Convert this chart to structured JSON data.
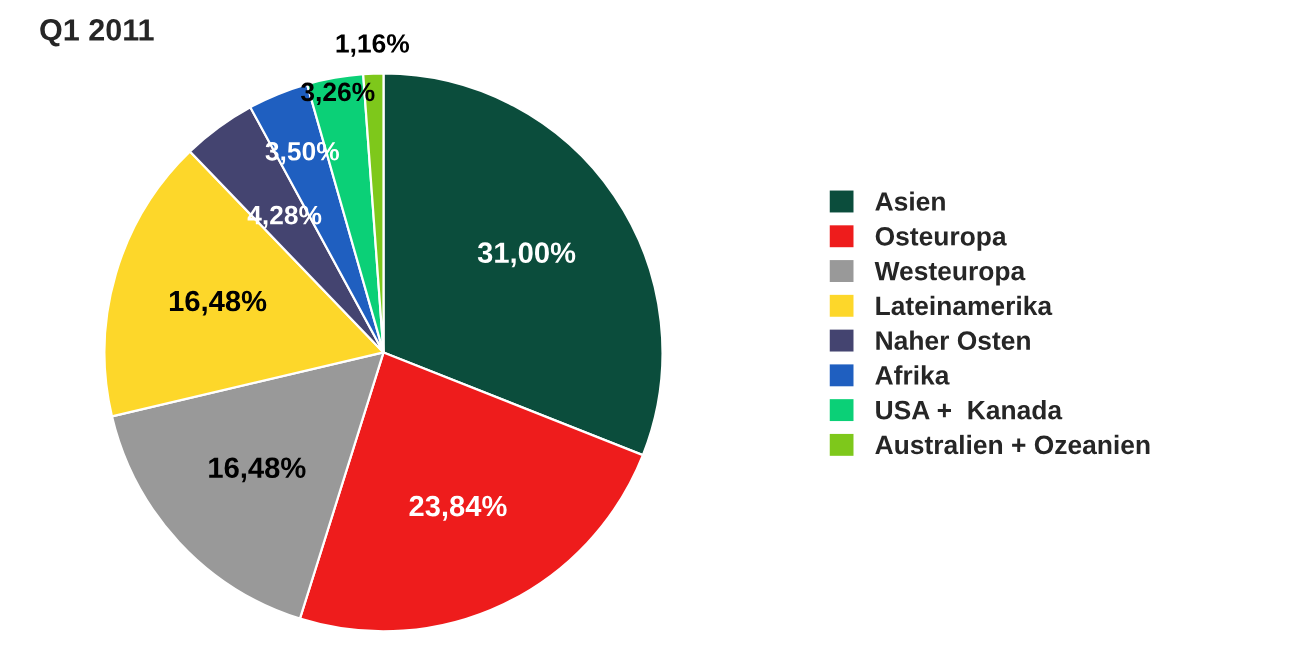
{
  "chart_data": {
    "type": "pie",
    "title": "Q1 2011",
    "categories": [
      "Asien",
      "Osteuropa",
      "Westeuropa",
      "Lateinamerika",
      "Naher Osten",
      "Afrika",
      "USA +  Kanada",
      "Australien + Ozeanien"
    ],
    "values": [
      31.0,
      23.84,
      16.48,
      16.48,
      4.28,
      3.5,
      3.26,
      1.16
    ],
    "value_labels": [
      "31,00%",
      "23,84%",
      "16,48%",
      "16,48%",
      "4,28%",
      "3,50%",
      "3,26%",
      "1,16%"
    ],
    "colors": [
      "#0b4d3c",
      "#ee1c1c",
      "#999999",
      "#fdd72a",
      "#444470",
      "#1f5fc0",
      "#0bd077",
      "#7ec81b"
    ],
    "legend": "right"
  }
}
